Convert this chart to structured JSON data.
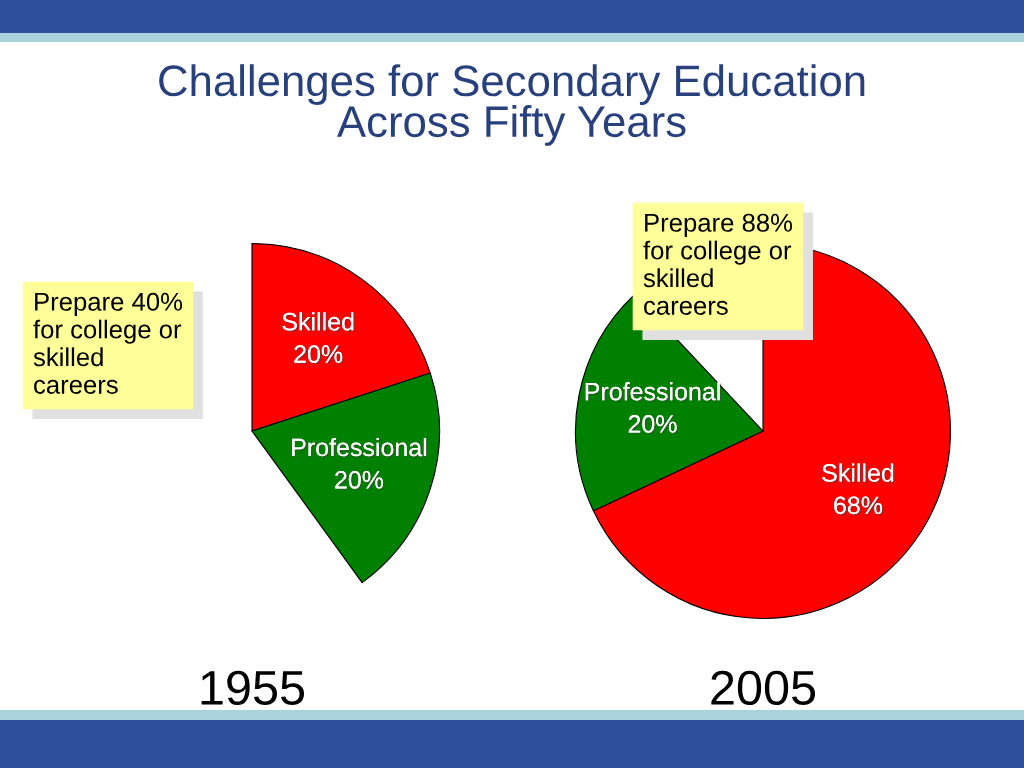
{
  "chart_data": [
    {
      "type": "pie",
      "title": "Challenges for Secondary Education\nAcross Fifty Years",
      "xlabel": "1955",
      "categories": [
        "Skilled",
        "Professional"
      ],
      "values": [
        20,
        20
      ],
      "value_labels": [
        "20%",
        "20%"
      ],
      "colors": [
        "#ff0000",
        "#008000"
      ],
      "annotations": [
        "Prepare 40%\nfor college or\nskilled\ncareers"
      ]
    },
    {
      "type": "pie",
      "xlabel": "2005",
      "categories": [
        "Skilled",
        "Professional"
      ],
      "values": [
        68,
        20
      ],
      "value_labels": [
        "68%",
        "20%"
      ],
      "colors": [
        "#ff0000",
        "#008000"
      ],
      "annotations": [
        "Prepare 88%\nfor college or\nskilled\ncareers"
      ]
    }
  ]
}
